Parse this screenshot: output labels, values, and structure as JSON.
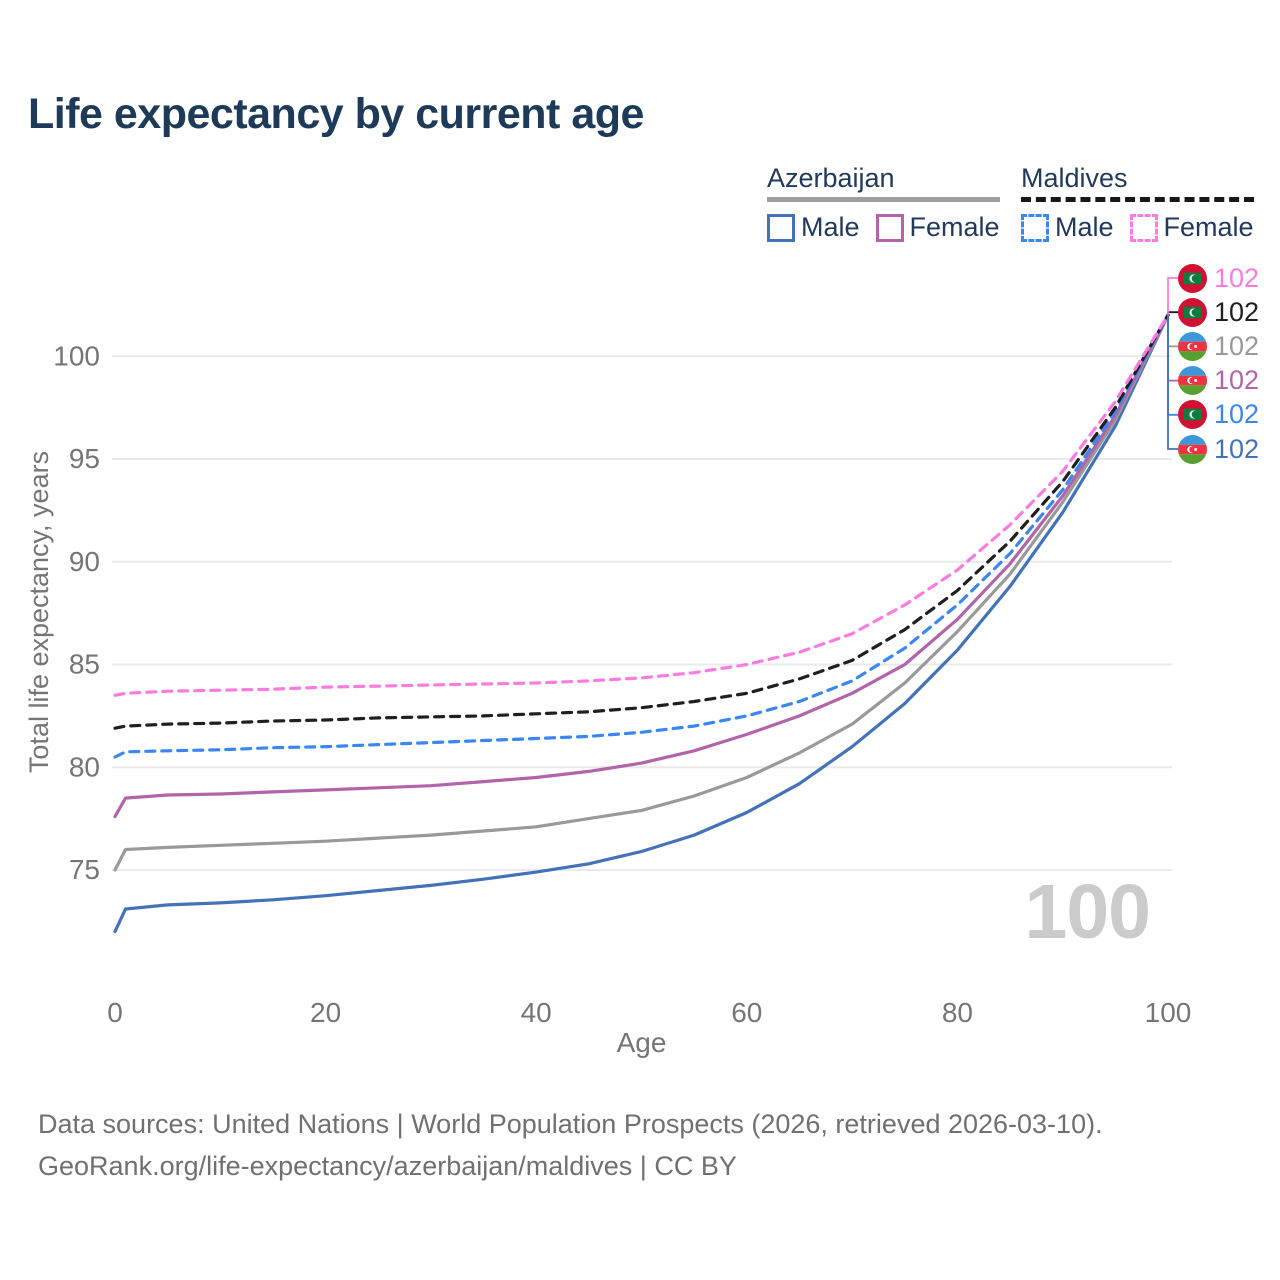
{
  "title": "Life expectancy by current age",
  "legend": {
    "groups": [
      {
        "label": "Azerbaijan",
        "underline_style": "solid",
        "underline_color": "#9e9e9e",
        "items": [
          {
            "label": "Male",
            "color": "#4472b8",
            "dash": false
          },
          {
            "label": "Female",
            "color": "#b264ab",
            "dash": false
          }
        ]
      },
      {
        "label": "Maldives",
        "underline_style": "dashed",
        "underline_color": "#171717",
        "items": [
          {
            "label": "Male",
            "color": "#3b87f0",
            "dash": true
          },
          {
            "label": "Female",
            "color": "#fb7ce1",
            "dash": true
          }
        ]
      }
    ]
  },
  "chart_data": {
    "type": "line",
    "title": "Life expectancy by current age",
    "xlabel": "Age",
    "ylabel": "Total life expectancy, years",
    "xlim": [
      0,
      100
    ],
    "ylim": [
      71,
      103
    ],
    "xticks": [
      0,
      20,
      40,
      60,
      80,
      100
    ],
    "yticks": [
      75,
      80,
      85,
      90,
      95,
      100
    ],
    "grid": "horizontal-only",
    "legend_position": "top-right",
    "age_indicator": "100",
    "x": [
      0,
      1,
      5,
      10,
      15,
      20,
      25,
      30,
      35,
      40,
      45,
      50,
      55,
      60,
      65,
      70,
      75,
      80,
      85,
      90,
      95,
      100
    ],
    "series": [
      {
        "id": "az-male",
        "name": "Azerbaijan Male",
        "country": "Azerbaijan",
        "sex": "Male",
        "color": "#4472b8",
        "dash": false,
        "values": [
          72.0,
          73.1,
          73.3,
          73.4,
          73.55,
          73.75,
          74.0,
          74.25,
          74.55,
          74.9,
          75.3,
          75.9,
          76.7,
          77.8,
          79.2,
          81.0,
          83.1,
          85.7,
          88.8,
          92.4,
          96.6,
          102
        ]
      },
      {
        "id": "az-total",
        "name": "Azerbaijan Both sexes",
        "country": "Azerbaijan",
        "sex": "Both",
        "color": "#999999",
        "dash": false,
        "values": [
          75.0,
          76.0,
          76.1,
          76.2,
          76.3,
          76.4,
          76.55,
          76.7,
          76.9,
          77.1,
          77.5,
          77.9,
          78.6,
          79.5,
          80.7,
          82.1,
          84.1,
          86.6,
          89.4,
          92.9,
          96.9,
          102
        ]
      },
      {
        "id": "az-female",
        "name": "Azerbaijan Female",
        "country": "Azerbaijan",
        "sex": "Female",
        "color": "#b264ab",
        "dash": false,
        "values": [
          77.6,
          78.5,
          78.65,
          78.7,
          78.8,
          78.9,
          79.0,
          79.1,
          79.3,
          79.5,
          79.8,
          80.2,
          80.8,
          81.6,
          82.5,
          83.6,
          85.0,
          87.2,
          89.9,
          93.2,
          97.1,
          102
        ]
      },
      {
        "id": "mv-male",
        "name": "Maldives Male",
        "country": "Maldives",
        "sex": "Male",
        "color": "#3b87f0",
        "dash": true,
        "values": [
          80.5,
          80.75,
          80.8,
          80.85,
          80.95,
          81.0,
          81.1,
          81.2,
          81.3,
          81.4,
          81.5,
          81.7,
          82.0,
          82.5,
          83.2,
          84.2,
          85.8,
          87.9,
          90.4,
          93.5,
          97.3,
          102
        ]
      },
      {
        "id": "mv-total",
        "name": "Maldives Both sexes",
        "country": "Maldives",
        "sex": "Both",
        "color": "#1f1f1f",
        "dash": true,
        "values": [
          81.9,
          82.0,
          82.1,
          82.15,
          82.25,
          82.3,
          82.4,
          82.45,
          82.5,
          82.6,
          82.7,
          82.9,
          83.2,
          83.6,
          84.3,
          85.2,
          86.7,
          88.6,
          91.0,
          93.9,
          97.5,
          102
        ]
      },
      {
        "id": "mv-female",
        "name": "Maldives Female",
        "country": "Maldives",
        "sex": "Female",
        "color": "#fb7ce1",
        "dash": true,
        "values": [
          83.5,
          83.6,
          83.7,
          83.75,
          83.8,
          83.9,
          83.95,
          84.0,
          84.05,
          84.1,
          84.2,
          84.35,
          84.6,
          85.0,
          85.6,
          86.5,
          87.9,
          89.6,
          91.8,
          94.4,
          97.8,
          102
        ]
      }
    ],
    "end_labels": [
      {
        "series": "Maldives Female",
        "flag": "maldives",
        "color": "#fb7ce1",
        "value": "102"
      },
      {
        "series": "Maldives Both sexes",
        "flag": "maldives",
        "color": "#1f1f1f",
        "value": "102"
      },
      {
        "series": "Azerbaijan Both sexes",
        "flag": "azerbaijan",
        "color": "#999999",
        "value": "102"
      },
      {
        "series": "Azerbaijan Female",
        "flag": "azerbaijan",
        "color": "#b264ab",
        "value": "102"
      },
      {
        "series": "Maldives Male",
        "flag": "maldives",
        "color": "#3b87f0",
        "value": "102"
      },
      {
        "series": "Azerbaijan Male",
        "flag": "azerbaijan",
        "color": "#4472b8",
        "value": "102"
      }
    ]
  },
  "footer": {
    "line1": "Data sources: United Nations | World Population Prospects (2026, retrieved 2026-03-10).",
    "line2": "GeoRank.org/life-expectancy/azerbaijan/maldives | CC BY"
  }
}
